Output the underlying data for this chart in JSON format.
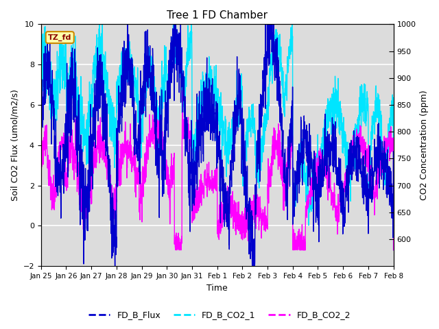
{
  "title": "Tree 1 FD Chamber",
  "xlabel": "Time",
  "ylabel_left": "Soil CO2 Flux (umol/m2/s)",
  "ylabel_right": "CO2 Concentration (ppm)",
  "ylim_left": [
    -2,
    10
  ],
  "ylim_right": [
    550,
    1000
  ],
  "yticks_left": [
    -2,
    0,
    2,
    4,
    6,
    8,
    10
  ],
  "yticks_right": [
    600,
    650,
    700,
    750,
    800,
    850,
    900,
    950,
    1000
  ],
  "xtick_labels": [
    "Jan 25",
    "Jan 26",
    "Jan 27",
    "Jan 28",
    "Jan 29",
    "Jan 30",
    "Jan 31",
    "Feb 1",
    "Feb 2",
    "Feb 3",
    "Feb 4",
    "Feb 5",
    "Feb 6",
    "Feb 7",
    "Feb 8"
  ],
  "color_flux": "#0000CC",
  "color_co2_1": "#00E5FF",
  "color_co2_2": "#FF00FF",
  "legend_label_flux": "FD_B_Flux",
  "legend_label_co2_1": "FD_B_CO2_1",
  "legend_label_co2_2": "FD_B_CO2_2",
  "tz_label": "TZ_fd",
  "bg_color": "#DCDCDC",
  "grid_color": "white",
  "linewidth": 1.0
}
